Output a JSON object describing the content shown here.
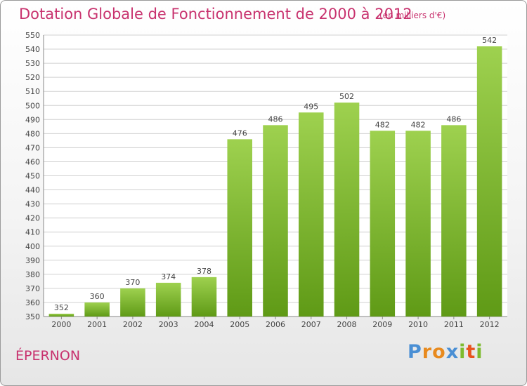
{
  "chart_data": {
    "type": "bar",
    "title": "Dotation Globale de Fonctionnement de 2000 à 2012",
    "subtitle": "(en milliers d'€)",
    "categories": [
      "2000",
      "2001",
      "2002",
      "2003",
      "2004",
      "2005",
      "2006",
      "2007",
      "2008",
      "2009",
      "2010",
      "2011",
      "2012"
    ],
    "values": [
      352,
      360,
      370,
      374,
      378,
      476,
      486,
      495,
      502,
      482,
      482,
      486,
      542
    ],
    "ylim": [
      350,
      550
    ],
    "ytick_step": 10,
    "grid": true,
    "bar_color": "#7dbb2e"
  },
  "footer": {
    "place": "ÉPERNON",
    "logo_letters": [
      {
        "ch": "P",
        "color": "#4a8fd4"
      },
      {
        "ch": "r",
        "color": "#e88a1e"
      },
      {
        "ch": "o",
        "color": "#e88a1e"
      },
      {
        "ch": "x",
        "color": "#4a8fd4"
      },
      {
        "ch": "i",
        "color": "#7dbb2e"
      },
      {
        "ch": "t",
        "color": "#e8541e"
      },
      {
        "ch": "i",
        "color": "#7dbb2e"
      }
    ]
  }
}
